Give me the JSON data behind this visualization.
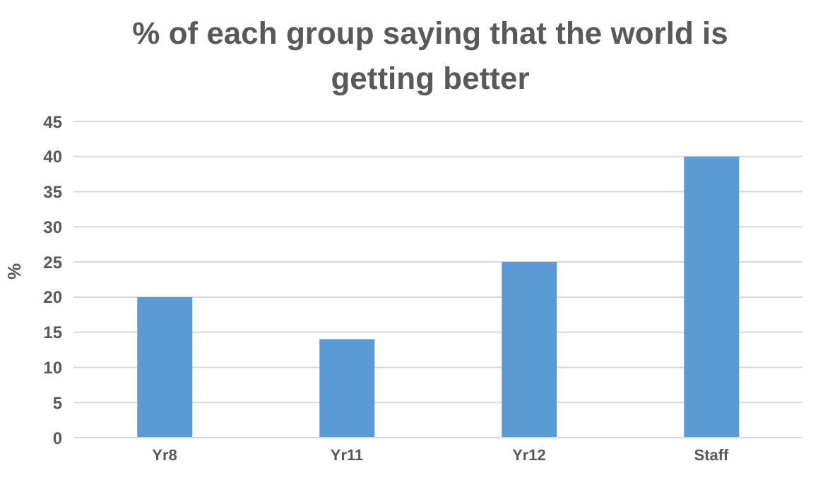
{
  "chart_data": {
    "type": "bar",
    "title": "% of each group saying that the world is getting better",
    "ylabel": "%",
    "categories": [
      "Yr8",
      "Yr11",
      "Yr12",
      "Staff"
    ],
    "values": [
      20,
      14,
      25,
      40
    ],
    "color": "#5b9bd5",
    "ylim": [
      0,
      45
    ],
    "yticks": [
      0,
      5,
      10,
      15,
      20,
      25,
      30,
      35,
      40,
      45
    ],
    "grid": "y"
  }
}
